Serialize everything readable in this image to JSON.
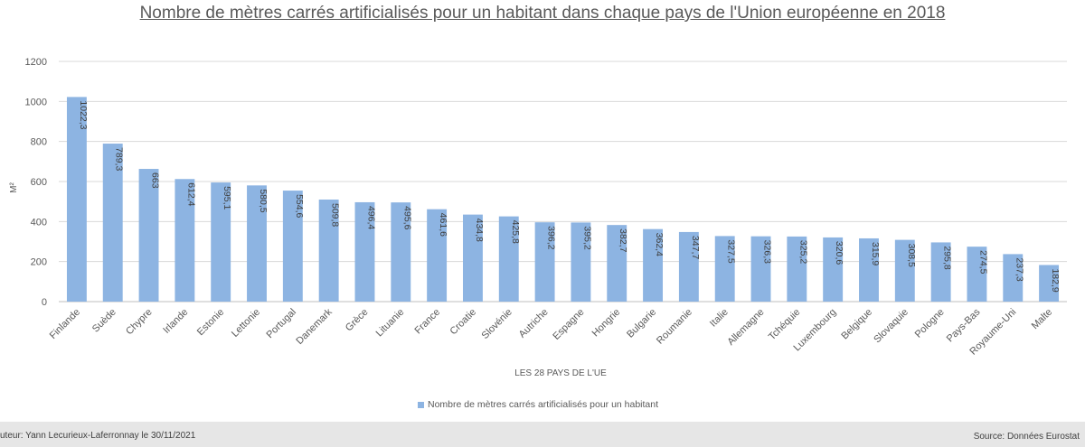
{
  "chart_data": {
    "type": "bar",
    "title": "Nombre de mètres carrés artificialisés pour un habitant dans chaque pays de l'Union européenne en 2018",
    "xlabel": "LES 28 PAYS DE L'UE",
    "ylabel": "M²",
    "ylim": [
      0,
      1200
    ],
    "yticks": [
      0,
      200,
      400,
      600,
      800,
      1000,
      1200
    ],
    "grid": true,
    "legend_position": "bottom",
    "color": "#8db4e2",
    "categories": [
      "Finlande",
      "Suède",
      "Chypre",
      "Irlande",
      "Estonie",
      "Lettonie",
      "Portugal",
      "Danemark",
      "Grèce",
      "Lituanie",
      "France",
      "Croatie",
      "Slovénie",
      "Autriche",
      "Espagne",
      "Hongrie",
      "Bulgarie",
      "Roumanie",
      "Italie",
      "Allemagne",
      "Tchéquie",
      "Luxembourg",
      "Belgique",
      "Slovaquie",
      "Pologne",
      "Pays-Bas",
      "Royaume-Uni",
      "Malte"
    ],
    "series": [
      {
        "name": "Nombre de mètres carrés artificialisés pour un habitant",
        "values": [
          1022.3,
          789.3,
          663,
          612.4,
          595.1,
          580.5,
          554.6,
          509.8,
          496.4,
          495.6,
          461.6,
          434.8,
          425.8,
          396.2,
          395.2,
          382.7,
          362.4,
          347.7,
          327.5,
          326.3,
          325.2,
          320.6,
          315.9,
          308.5,
          295.8,
          274.5,
          237.3,
          182.9
        ],
        "labels": [
          "1022,3",
          "789,3",
          "663",
          "612,4",
          "595,1",
          "580,5",
          "554,6",
          "509,8",
          "496,4",
          "495,6",
          "461,6",
          "434,8",
          "425,8",
          "396,2",
          "395,2",
          "382,7",
          "362,4",
          "347,7",
          "327,5",
          "326,3",
          "325,2",
          "320,6",
          "315,9",
          "308,5",
          "295,8",
          "274,5",
          "237,3",
          "182,9"
        ]
      }
    ]
  },
  "footer": {
    "author": "uteur: Yann Lecurieux-Laferronnay le 30/11/2021",
    "source": "Source: Données Eurostat"
  }
}
